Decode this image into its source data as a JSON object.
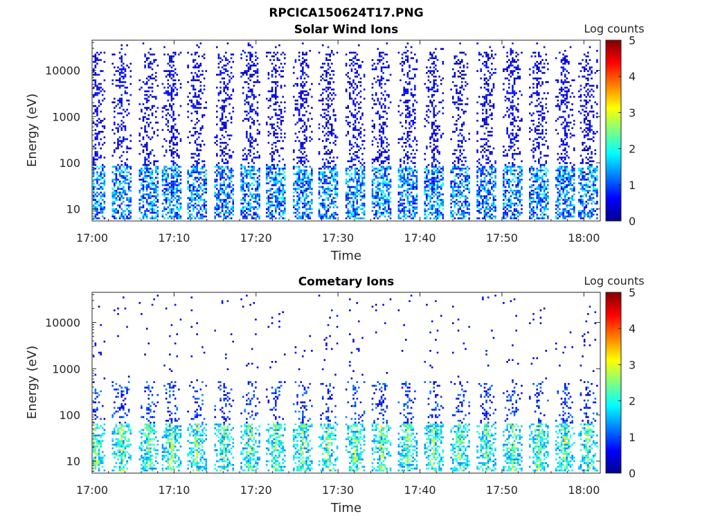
{
  "figure_title": "RPCICA150624T17.PNG",
  "colors": {
    "colormap": "jet",
    "axes": "#262626",
    "background": "#ffffff"
  },
  "chart_data": [
    {
      "type": "heatmap",
      "title": "Solar Wind Ions",
      "xlabel": "Time",
      "ylabel": "Energy (eV)",
      "yscale": "log",
      "ylim": [
        5.5,
        45000
      ],
      "xlim": [
        "17:00",
        "18:02"
      ],
      "x_ticks": [
        "17:00",
        "17:10",
        "17:20",
        "17:30",
        "17:40",
        "17:50",
        "18:00"
      ],
      "y_ticks": [
        "10",
        "100",
        "1000",
        "10000"
      ],
      "colorbar": {
        "label": "Log counts",
        "range": [
          0,
          5
        ],
        "ticks": [
          "0",
          "1",
          "2",
          "3",
          "4",
          "5"
        ]
      },
      "energy_sweep_centers_min": [
        0.3,
        3.5,
        6.8,
        9.6,
        12.7,
        16.0,
        19.2,
        22.3,
        25.6,
        28.7,
        32.0,
        35.2,
        38.4,
        41.6,
        44.8,
        48.0,
        51.2,
        54.4,
        57.6,
        60.4
      ],
      "grid": false
    },
    {
      "type": "heatmap",
      "title": "Cometary Ions",
      "xlabel": "Time",
      "ylabel": "Energy (eV)",
      "yscale": "log",
      "ylim": [
        5.5,
        45000
      ],
      "xlim": [
        "17:00",
        "18:02"
      ],
      "x_ticks": [
        "17:00",
        "17:10",
        "17:20",
        "17:30",
        "17:40",
        "17:50",
        "18:00"
      ],
      "y_ticks": [
        "10",
        "100",
        "1000",
        "10000"
      ],
      "colorbar": {
        "label": "Log counts",
        "range": [
          0,
          5
        ],
        "ticks": [
          "0",
          "1",
          "2",
          "3",
          "4",
          "5"
        ]
      },
      "energy_sweep_centers_min": [
        0.3,
        3.5,
        6.8,
        9.6,
        12.7,
        16.0,
        19.2,
        22.3,
        25.6,
        28.7,
        32.0,
        35.2,
        38.4,
        41.6,
        44.8,
        48.0,
        51.2,
        54.4,
        57.6,
        60.4
      ],
      "grid": false
    }
  ]
}
